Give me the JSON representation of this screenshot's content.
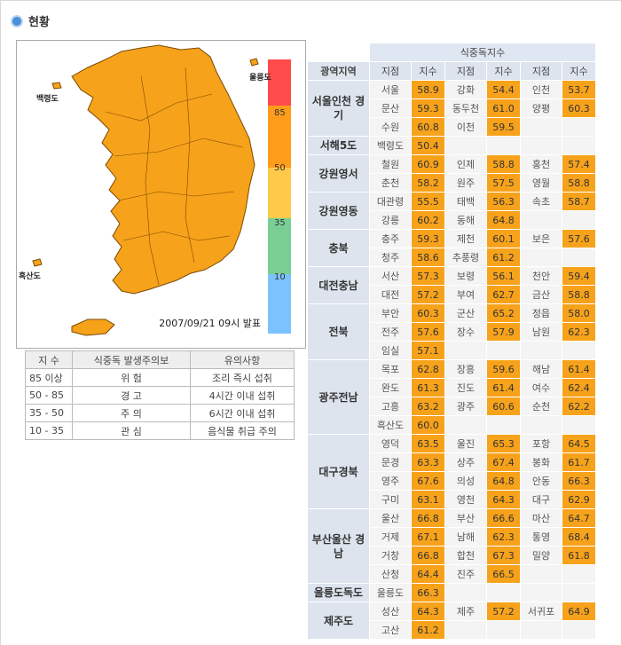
{
  "header": {
    "title": "현황"
  },
  "map": {
    "labels": [
      "울릉도",
      "백령도",
      "흑산도"
    ],
    "scale": [
      "85",
      "50",
      "35",
      "10"
    ],
    "issued": "2007/09/21 09시 발표"
  },
  "legend_table": {
    "header": [
      "지 수",
      "식중독 발생주의보",
      "유의사항"
    ],
    "rows": [
      [
        "85 이상",
        "위 험",
        "조리 즉시 섭취"
      ],
      [
        "50 - 85",
        "경 고",
        "4시간 이내 섭취"
      ],
      [
        "35 - 50",
        "주 의",
        "6시간 이내 섭취"
      ],
      [
        "10 - 35",
        "관 심",
        "음식물 취급 주의"
      ]
    ]
  },
  "table": {
    "title": "식중독지수",
    "columns": [
      "광역지역",
      "지점",
      "지수",
      "지점",
      "지수",
      "지점",
      "지수"
    ],
    "regions": [
      {
        "name": "서울인천 경기",
        "rows": [
          [
            "서울",
            "58.9",
            "강화",
            "54.4",
            "인천",
            "53.7"
          ],
          [
            "문산",
            "59.3",
            "동두천",
            "61.0",
            "양평",
            "60.3"
          ],
          [
            "수원",
            "60.8",
            "이천",
            "59.5"
          ]
        ]
      },
      {
        "name": "서해5도",
        "rows": [
          [
            "백령도",
            "50.4"
          ]
        ]
      },
      {
        "name": "강원영서",
        "rows": [
          [
            "철원",
            "60.9",
            "인제",
            "58.8",
            "홍천",
            "57.4"
          ],
          [
            "춘천",
            "58.2",
            "원주",
            "57.5",
            "영월",
            "58.8"
          ]
        ]
      },
      {
        "name": "강원영동",
        "rows": [
          [
            "대관령",
            "55.5",
            "태백",
            "56.3",
            "속초",
            "58.7"
          ],
          [
            "강릉",
            "60.2",
            "동해",
            "64.8"
          ]
        ]
      },
      {
        "name": "충북",
        "rows": [
          [
            "충주",
            "59.3",
            "제천",
            "60.1",
            "보은",
            "57.6"
          ],
          [
            "청주",
            "58.6",
            "추풍령",
            "61.2"
          ]
        ]
      },
      {
        "name": "대전충남",
        "rows": [
          [
            "서산",
            "57.3",
            "보령",
            "56.1",
            "천안",
            "59.4"
          ],
          [
            "대전",
            "57.2",
            "부여",
            "62.7",
            "금산",
            "58.8"
          ]
        ]
      },
      {
        "name": "전북",
        "rows": [
          [
            "부안",
            "60.3",
            "군산",
            "65.2",
            "정읍",
            "58.0"
          ],
          [
            "전주",
            "57.6",
            "장수",
            "57.9",
            "남원",
            "62.3"
          ],
          [
            "임실",
            "57.1"
          ]
        ]
      },
      {
        "name": "광주전남",
        "rows": [
          [
            "목포",
            "62.8",
            "장흥",
            "59.6",
            "해남",
            "61.4"
          ],
          [
            "완도",
            "61.3",
            "진도",
            "61.4",
            "여수",
            "62.4"
          ],
          [
            "고흥",
            "63.2",
            "광주",
            "60.6",
            "순천",
            "62.2"
          ],
          [
            "흑산도",
            "60.0"
          ]
        ]
      },
      {
        "name": "대구경북",
        "rows": [
          [
            "영덕",
            "63.5",
            "울진",
            "65.3",
            "포항",
            "64.5"
          ],
          [
            "문경",
            "63.3",
            "상주",
            "67.4",
            "봉화",
            "61.7"
          ],
          [
            "영주",
            "67.6",
            "의성",
            "64.8",
            "안동",
            "66.3"
          ],
          [
            "구미",
            "63.1",
            "영천",
            "64.3",
            "대구",
            "62.9"
          ]
        ]
      },
      {
        "name": "부산울산 경남",
        "rows": [
          [
            "울산",
            "66.8",
            "부산",
            "66.6",
            "마산",
            "64.7"
          ],
          [
            "거제",
            "67.1",
            "남해",
            "62.3",
            "통영",
            "68.4"
          ],
          [
            "거창",
            "66.8",
            "합천",
            "67.3",
            "밀양",
            "61.8"
          ],
          [
            "산청",
            "64.4",
            "진주",
            "66.5"
          ]
        ]
      },
      {
        "name": "울릉도독도",
        "rows": [
          [
            "울릉도",
            "66.3"
          ]
        ]
      },
      {
        "name": "제주도",
        "rows": [
          [
            "성산",
            "64.3",
            "제주",
            "57.2",
            "서귀포",
            "64.9"
          ],
          [
            "고산",
            "61.2"
          ]
        ]
      }
    ]
  }
}
